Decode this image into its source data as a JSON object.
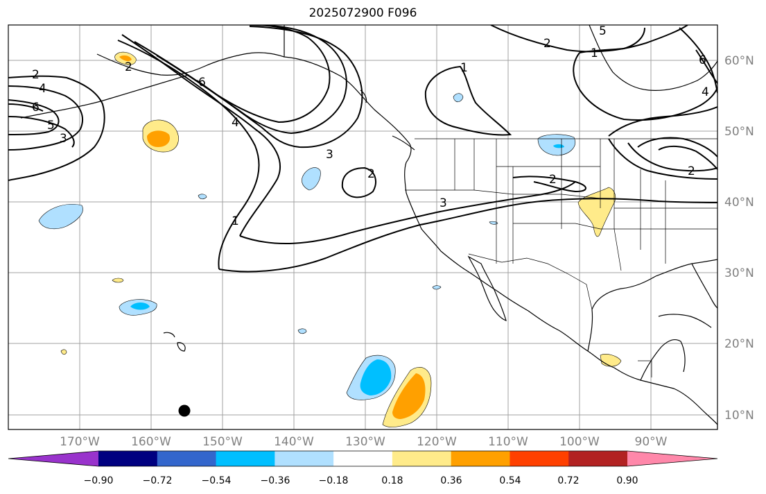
{
  "title": "2025072900 F096",
  "lat_labels": [
    "60°N",
    "50°N",
    "40°N",
    "30°N",
    "20°N",
    "10°N"
  ],
  "lon_labels": [
    "170°W",
    "160°W",
    "150°W",
    "140°W",
    "130°W",
    "120°W",
    "110°W",
    "100°W",
    "90°W"
  ],
  "colorbar": {
    "tick_labels": [
      "−0.90",
      "−0.72",
      "−0.54",
      "−0.36",
      "−0.18",
      "0.18",
      "0.36",
      "0.54",
      "0.72",
      "0.90"
    ],
    "colors": [
      "#9933cc",
      "#000080",
      "#3366cc",
      "#00bfff",
      "#b0e0ff",
      "#ffffff",
      "#ffeb8a",
      "#ffa000",
      "#ff4000",
      "#b22222",
      "#ff88aa"
    ]
  },
  "contour_labels": [
    "1",
    "2",
    "3",
    "4",
    "5",
    "6"
  ],
  "map_features": [
    "coastlines",
    "country borders",
    "US state borders",
    "lat/lon gridlines",
    "black contours",
    "shaded anomalies"
  ]
}
